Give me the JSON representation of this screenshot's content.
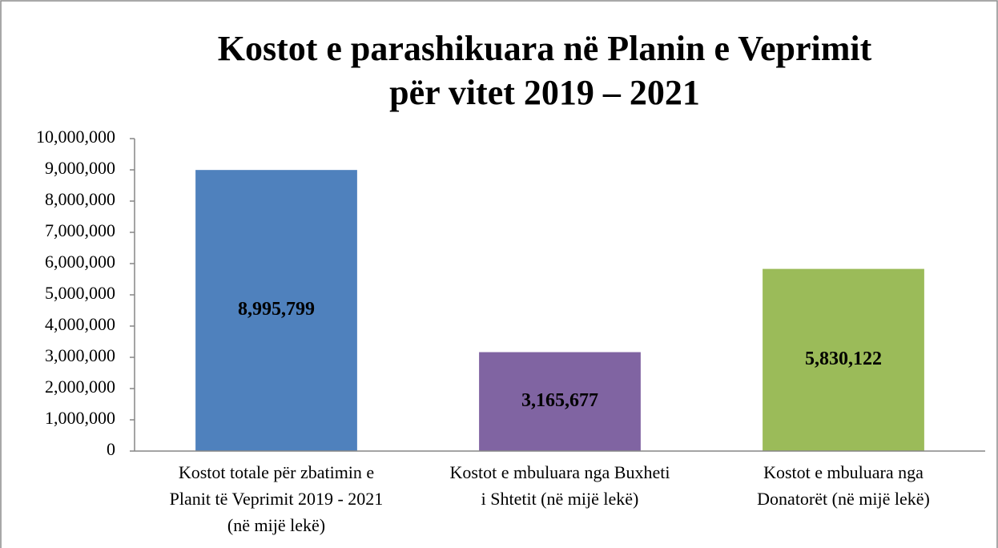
{
  "chart_data": {
    "type": "bar",
    "title": "Kostot e parashikuara në Planin e Veprimit\npër vitet 2019 – 2021",
    "categories": [
      "Kostot totale për zbatimin e\nPlanit të Veprimit 2019 - 2021\n(në mijë lekë)",
      "Kostot e mbuluara nga Buxheti\ni Shtetit (në mijë lekë)",
      "Kostot e mbuluara nga\nDonatorët (në mijë lekë)"
    ],
    "values": [
      8995799,
      3165677,
      5830122
    ],
    "value_labels": [
      "8,995,799",
      "3,165,677",
      "5,830,122"
    ],
    "colors": [
      "#4f81bd",
      "#8064a2",
      "#9bbb59"
    ],
    "ylim": [
      0,
      10000000
    ],
    "yticks": [
      0,
      {
        "value": 1000000,
        "label": "1,000,000"
      },
      {
        "value": 2000000,
        "label": "2,000,000"
      },
      {
        "value": 3000000,
        "label": "3,000,000"
      },
      {
        "value": 4000000,
        "label": "4,000,000"
      },
      {
        "value": 5000000,
        "label": "5,000,000"
      },
      {
        "value": 6000000,
        "label": "6,000,000"
      },
      {
        "value": 7000000,
        "label": "7,000,000"
      },
      {
        "value": 8000000,
        "label": "8,000,000"
      },
      {
        "value": 9000000,
        "label": "9,000,000"
      },
      {
        "value": 10000000,
        "label": "10,000,000"
      }
    ],
    "grid": false
  }
}
